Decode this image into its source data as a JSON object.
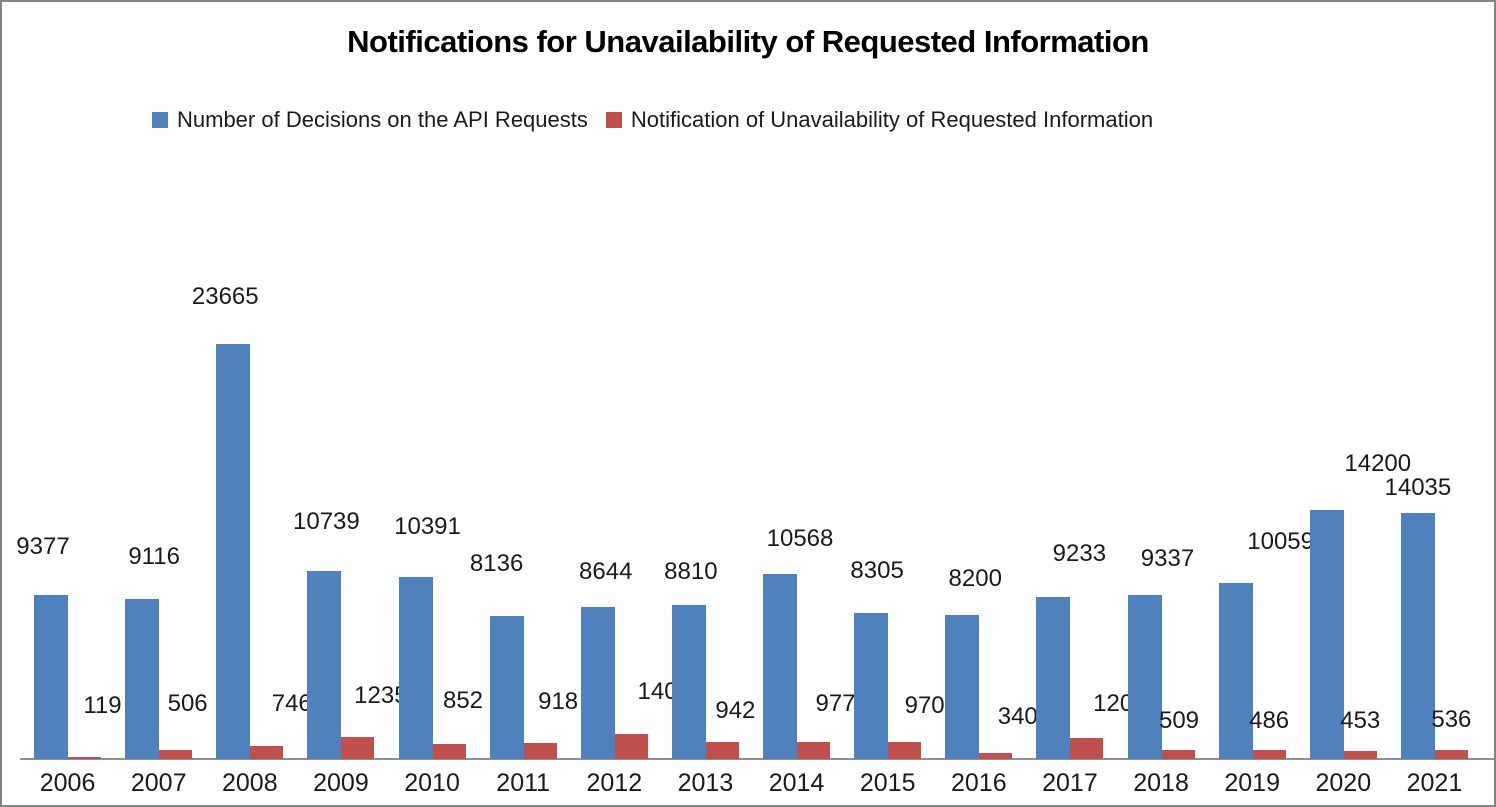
{
  "title": "Notifications for Unavailability of Requested Information",
  "legend": {
    "position": "top",
    "entries": [
      {
        "label": "Number of Decisions on the API Requests",
        "color": "#4F81BD"
      },
      {
        "label": "Notification of Unavailability of Requested Information",
        "color": "#C0504D"
      }
    ]
  },
  "colors": {
    "series_blue": "#4F81BD",
    "series_red": "#C0504D",
    "axis_line": "#909090",
    "frame_border": "#848484",
    "text": "#1a1a1a",
    "background": "#ffffff"
  },
  "chart_data": {
    "type": "bar",
    "categories": [
      "2006",
      "2007",
      "2008",
      "2009",
      "2010",
      "2011",
      "2012",
      "2013",
      "2014",
      "2015",
      "2016",
      "2017",
      "2018",
      "2019",
      "2020",
      "2021"
    ],
    "series": [
      {
        "name": "Number of Decisions on the API Requests",
        "color": "#4F81BD",
        "values": [
          9377,
          9116,
          23665,
          10739,
          10391,
          8136,
          8644,
          8810,
          10568,
          8305,
          8200,
          9233,
          9337,
          10059,
          14200,
          14035
        ]
      },
      {
        "name": "Notification of Unavailability of Requested Information",
        "color": "#C0504D",
        "values": [
          119,
          506,
          746,
          1235,
          852,
          918,
          1405,
          942,
          977,
          970,
          340,
          1200,
          509,
          486,
          453,
          536
        ]
      }
    ],
    "title": "Notifications for Unavailability of Requested Information",
    "xlabel": "",
    "ylabel": "",
    "ylim": [
      0,
      25000
    ],
    "grid": false,
    "y_axis_visible": false,
    "data_labels": "outside-end",
    "legend_position": "top"
  }
}
